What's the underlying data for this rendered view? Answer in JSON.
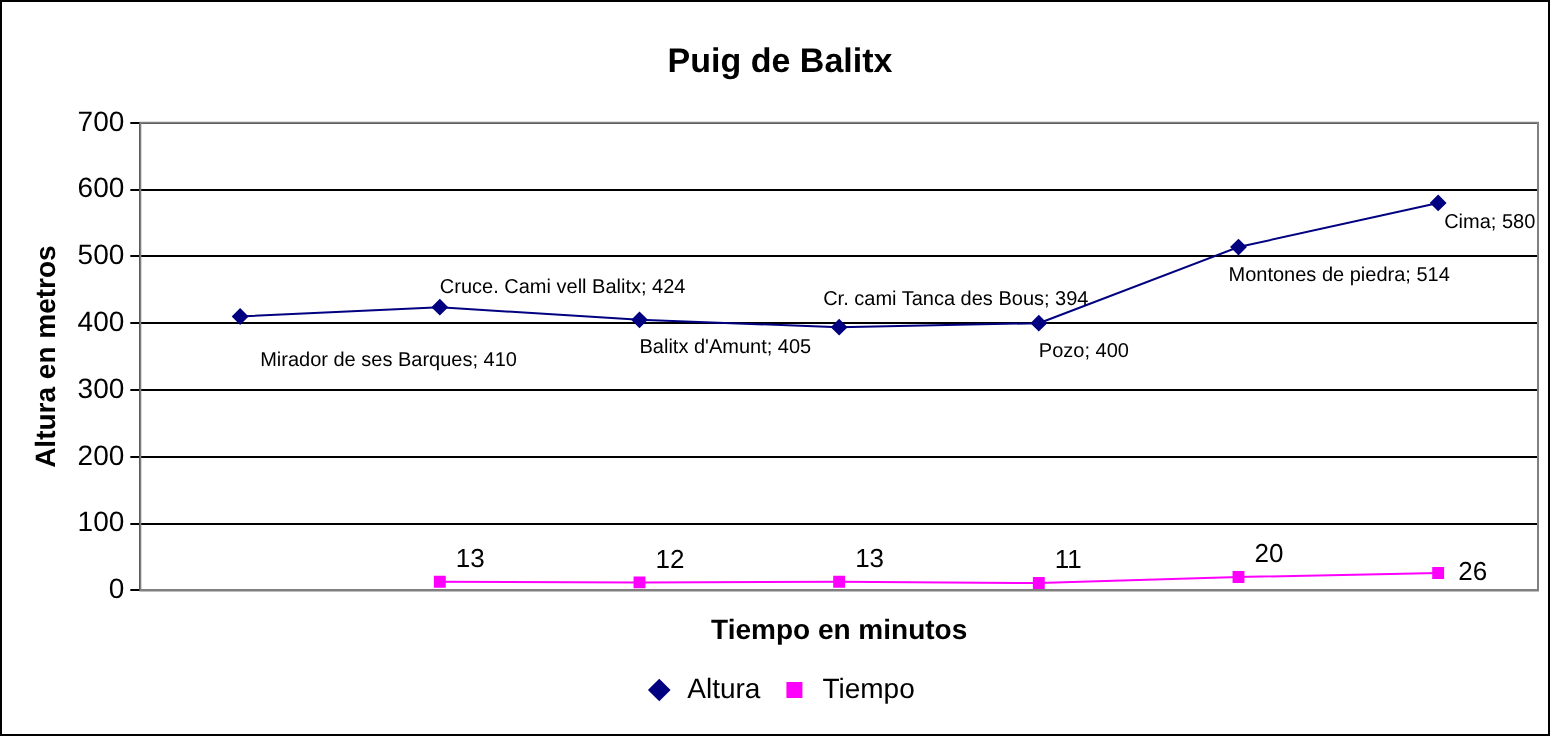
{
  "chart_data": {
    "type": "line",
    "title": "Puig de Balitx",
    "xlabel": "Tiempo en minutos",
    "ylabel": "Altura en metros",
    "categories": [
      null,
      null,
      null,
      null,
      null,
      null,
      null
    ],
    "series": [
      {
        "name": "Altura",
        "color": "#000080",
        "marker": "diamond",
        "values": [
          410,
          424,
          405,
          394,
          400,
          514,
          580
        ],
        "value_labels": [
          "Mirador de ses Barques; 410",
          "Cruce. Cami vell Balitx; 424",
          "Balitx d'Amunt; 405",
          "Cr. cami Tanca des Bous; 394",
          "Pozo; 400",
          "Montones de piedra; 514",
          "Cima; 580"
        ]
      },
      {
        "name": "Tiempo",
        "color": "#ff00ff",
        "marker": "square",
        "values": [
          null,
          13,
          12,
          13,
          11,
          20,
          26
        ],
        "value_labels": [
          null,
          "13",
          "12",
          "13",
          "11",
          "20",
          "26"
        ]
      }
    ],
    "ylim": [
      0,
      700
    ],
    "yticks": [
      0,
      100,
      200,
      300,
      400,
      500,
      600,
      700
    ],
    "grid": "y",
    "legend": "bottom",
    "tick_labels": "y",
    "line_style": "solid"
  }
}
